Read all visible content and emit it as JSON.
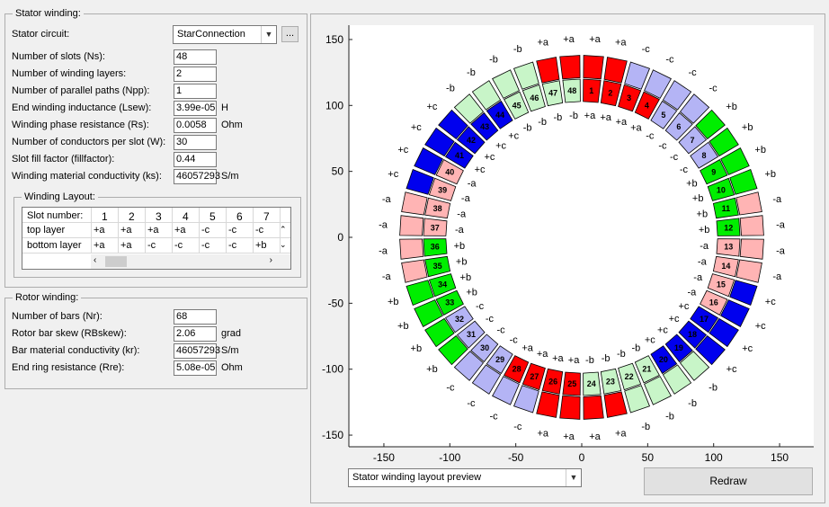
{
  "stator": {
    "title": "Stator winding:",
    "circuit_label": "Stator circuit:",
    "circuit_value": "StarConnection",
    "browse_label": "...",
    "fields": [
      {
        "label": "Number of slots (Ns):",
        "value": "48",
        "unit": ""
      },
      {
        "label": "Number of winding layers:",
        "value": "2",
        "unit": ""
      },
      {
        "label": "Number of parallel paths (Npp):",
        "value": "1",
        "unit": ""
      },
      {
        "label": "End winding inductance (Lsew):",
        "value": "3.99e-05",
        "unit": "H"
      },
      {
        "label": "Winding phase resistance (Rs):",
        "value": "0.0058",
        "unit": "Ohm"
      },
      {
        "label": "Number of conductors per slot (W):",
        "value": "30",
        "unit": ""
      },
      {
        "label": "Slot fill factor (fillfactor):",
        "value": "0.44",
        "unit": ""
      },
      {
        "label": "Winding material conductivity (ks):",
        "value": "46057293",
        "unit": "S/m"
      }
    ],
    "layout": {
      "title": "Winding Layout:",
      "slot_header": "Slot number:",
      "columns": [
        "1",
        "2",
        "3",
        "4",
        "5",
        "6",
        "7"
      ],
      "rows": [
        {
          "label": "top layer",
          "cells": [
            "+a",
            "+a",
            "+a",
            "+a",
            "-c",
            "-c",
            "-c"
          ]
        },
        {
          "label": "bottom layer",
          "cells": [
            "+a",
            "+a",
            "-c",
            "-c",
            "-c",
            "-c",
            "+b"
          ]
        }
      ]
    }
  },
  "rotor": {
    "title": "Rotor winding:",
    "fields": [
      {
        "label": "Number of bars (Nr):",
        "value": "68",
        "unit": ""
      },
      {
        "label": "Rotor bar skew (RBskew):",
        "value": "2.06",
        "unit": "grad"
      },
      {
        "label": "Bar material conductivity (kr):",
        "value": "46057293",
        "unit": "S/m"
      },
      {
        "label": "End ring resistance (Rre):",
        "value": "5.08e-05",
        "unit": "Ohm"
      }
    ]
  },
  "plot": {
    "view_select": "Stator winding layout preview",
    "redraw_label": "Redraw"
  },
  "chart_data": {
    "type": "diagram",
    "xlim": [
      -180,
      180
    ],
    "ylim": [
      -160,
      160
    ],
    "xticks": [
      -150,
      -100,
      -50,
      0,
      50,
      100,
      150
    ],
    "yticks": [
      -150,
      -100,
      -50,
      0,
      50,
      100,
      150
    ],
    "slots": 48,
    "inner_layer": [
      "+a",
      "+a",
      "+a",
      "+a",
      "-c",
      "-c",
      "-c",
      "-c",
      "+b",
      "+b",
      "+b",
      "+b",
      "-a",
      "-a",
      "-a",
      "-a",
      "+c",
      "+c",
      "+c",
      "+c",
      "-b",
      "-b",
      "-b",
      "-b",
      "+a",
      "+a",
      "+a",
      "+a",
      "-c",
      "-c",
      "-c",
      "-c",
      "+b",
      "+b",
      "+b",
      "+b",
      "-a",
      "-a",
      "-a",
      "-a",
      "+c",
      "+c",
      "+c",
      "+c",
      "-b",
      "-b",
      "-b",
      "-b"
    ],
    "outer_layer": [
      "+a",
      "+a",
      "-c",
      "-c",
      "-c",
      "-c",
      "+b",
      "+b",
      "+b",
      "+b",
      "-a",
      "-a",
      "-a",
      "-a",
      "+c",
      "+c",
      "+c",
      "+c",
      "-b",
      "-b",
      "-b",
      "-b",
      "+a",
      "+a",
      "+a",
      "+a",
      "-c",
      "-c",
      "-c",
      "-c",
      "+b",
      "+b",
      "+b",
      "+b",
      "-a",
      "-a",
      "-a",
      "-a",
      "+c",
      "+c",
      "+c",
      "+c",
      "-b",
      "-b",
      "-b",
      "-b",
      "+a",
      "+a"
    ],
    "colors": {
      "+a": "#ff0000",
      "-a": "#ffb4b4",
      "+b": "#00ee00",
      "-b": "#c8f5c8",
      "+c": "#0000ee",
      "-c": "#b4b4f5"
    }
  }
}
